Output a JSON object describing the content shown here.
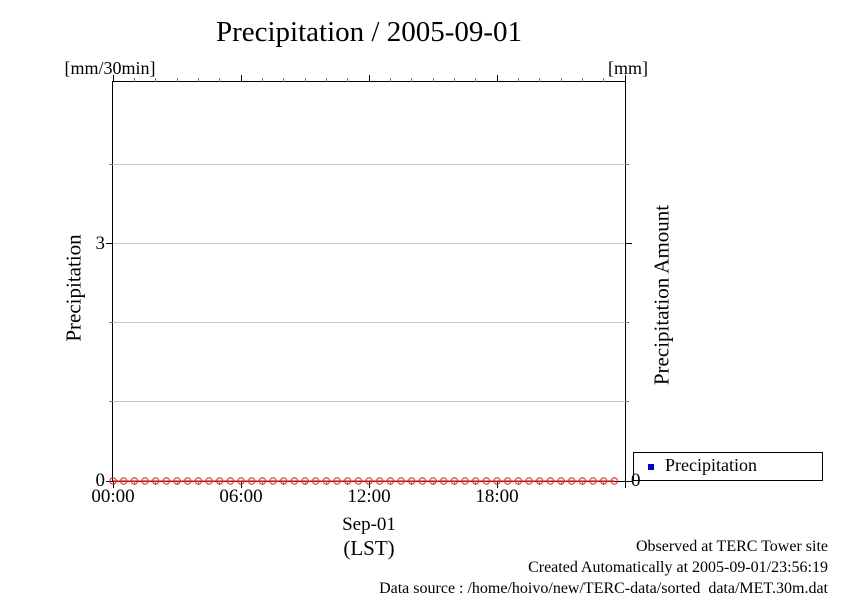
{
  "colors": {
    "series": "#e03131",
    "grid": "#c9c9c9",
    "axis": "#000000",
    "minor_tick": "#777777",
    "legend_marker": "#0000cc"
  },
  "legend": {
    "label": "Precipitation"
  },
  "footer": {
    "line1": "Observed at TERC Tower site",
    "line2": "Created Automatically at 2005-09-01/23:56:19",
    "line3": "Data source : /home/hoivo/new/TERC-data/sorted  data/MET.30m.dat"
  },
  "chart_data": {
    "type": "line",
    "title": "Precipitation / 2005-09-01",
    "unit_left": "[mm/30min]",
    "unit_right": "[mm]",
    "ylabel_left": "Precipitation",
    "ylabel_right": "Precipitation Amount",
    "xlabel_date": "Sep-01",
    "xlabel_tz": "(LST)",
    "legend_entry": "Precipitation",
    "legend_position": "outside-bottom-right",
    "marker": "open-circle",
    "x": [
      "00:00",
      "00:30",
      "01:00",
      "01:30",
      "02:00",
      "02:30",
      "03:00",
      "03:30",
      "04:00",
      "04:30",
      "05:00",
      "05:30",
      "06:00",
      "06:30",
      "07:00",
      "07:30",
      "08:00",
      "08:30",
      "09:00",
      "09:30",
      "10:00",
      "10:30",
      "11:00",
      "11:30",
      "12:00",
      "12:30",
      "13:00",
      "13:30",
      "14:00",
      "14:30",
      "15:00",
      "15:30",
      "16:00",
      "16:30",
      "17:00",
      "17:30",
      "18:00",
      "18:30",
      "19:00",
      "19:30",
      "20:00",
      "20:30",
      "21:00",
      "21:30",
      "22:00",
      "22:30",
      "23:00",
      "23:30"
    ],
    "values": [
      0,
      0,
      0,
      0,
      0,
      0,
      0,
      0,
      0,
      0,
      0,
      0,
      0,
      0,
      0,
      0,
      0,
      0,
      0,
      0,
      0,
      0,
      0,
      0,
      0,
      0,
      0,
      0,
      0,
      0,
      0,
      0,
      0,
      0,
      0,
      0,
      0,
      0,
      0,
      0,
      0,
      0,
      0,
      0,
      0,
      0,
      0,
      0
    ],
    "xlim_hours": [
      0,
      24
    ],
    "ylim": [
      0,
      5.05
    ],
    "xticks": [
      {
        "hour": 0,
        "label": "00:00"
      },
      {
        "hour": 6,
        "label": "06:00"
      },
      {
        "hour": 12,
        "label": "12:00"
      },
      {
        "hour": 18,
        "label": "18:00"
      }
    ],
    "x_minor_tick_every_hours": 1,
    "yticks_major": [
      0,
      3
    ],
    "yticks_minor": [
      1,
      2,
      4
    ],
    "yticks_right_labeled": [
      0
    ],
    "grid_y": [
      1,
      2,
      3,
      4
    ],
    "grid": "horizontal-only"
  }
}
